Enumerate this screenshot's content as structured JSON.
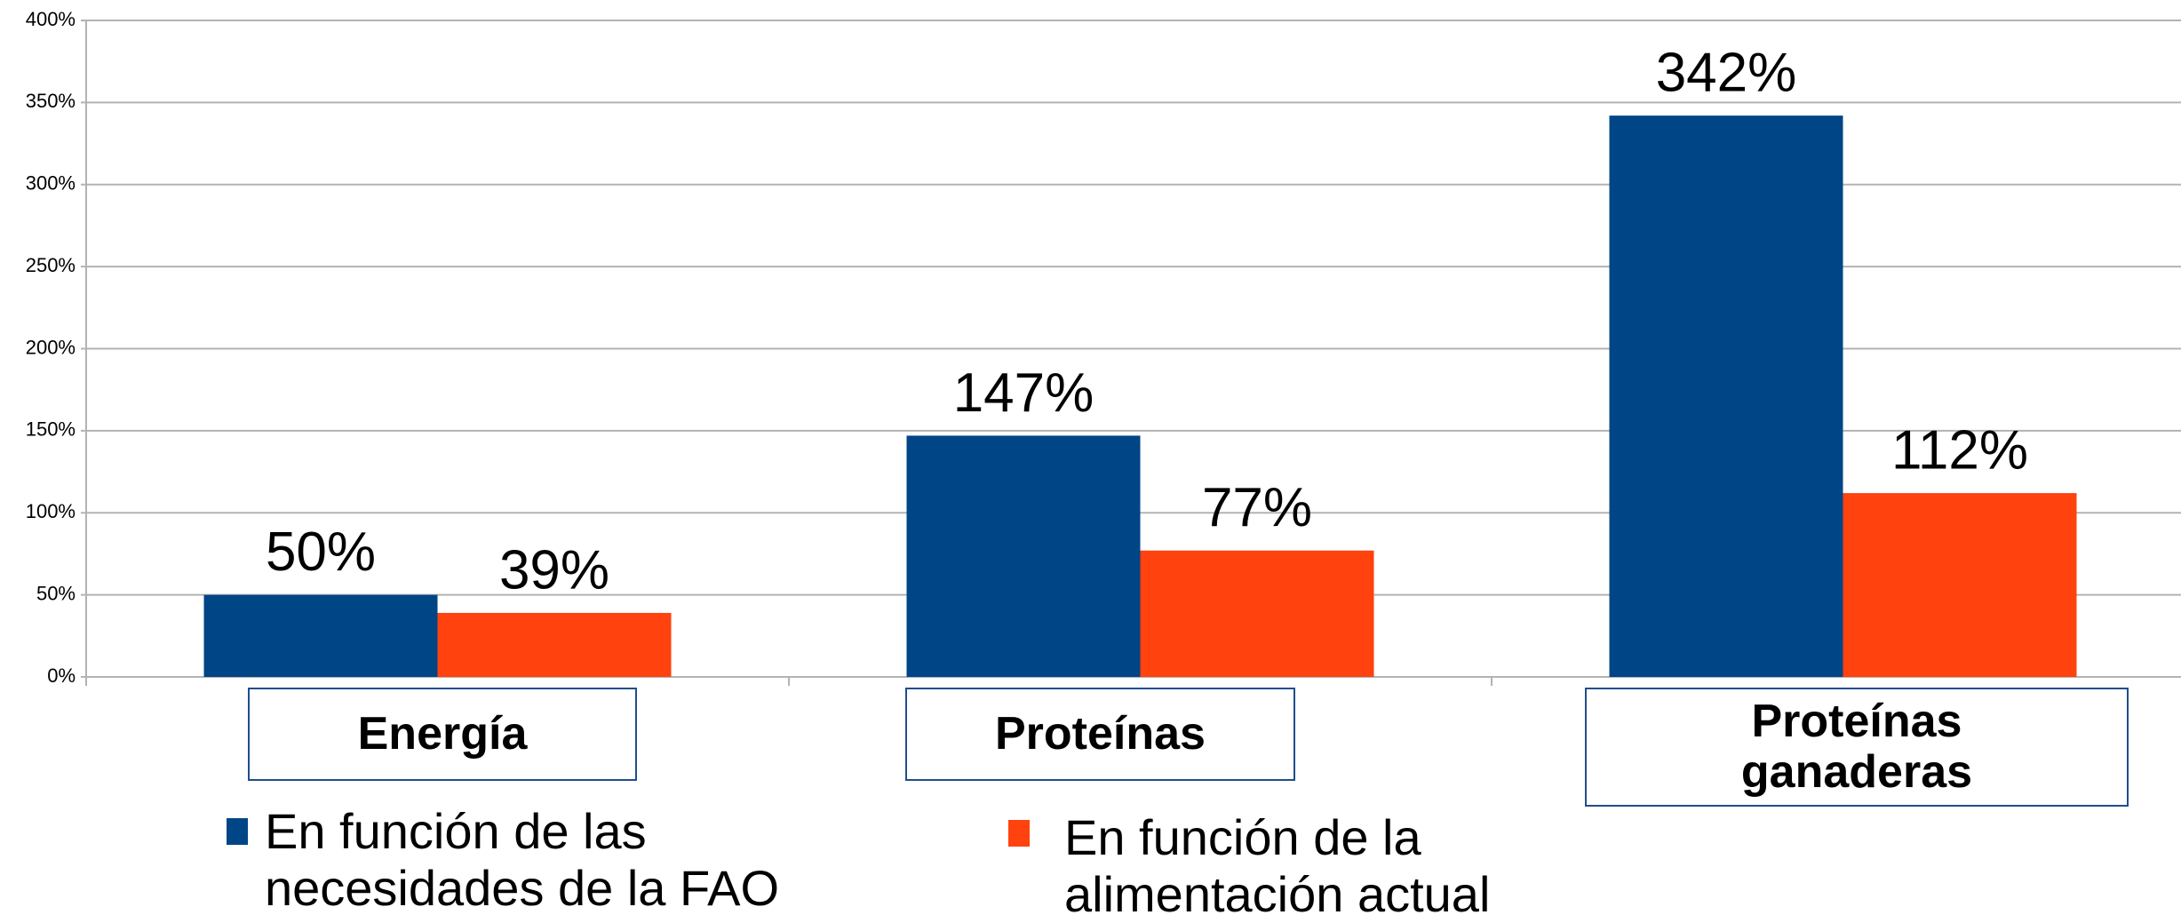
{
  "chart_data": {
    "type": "bar",
    "categories": [
      "Energía",
      "Proteínas",
      "Proteínas ganaderas"
    ],
    "series": [
      {
        "name": "En función de las necesidades de la FAO",
        "color": "#004586",
        "values": [
          50,
          147,
          342
        ],
        "value_labels": [
          "50%",
          "147%",
          "342%"
        ]
      },
      {
        "name": "En función de la alimentación actual",
        "color": "#ff420e",
        "values": [
          39,
          77,
          112
        ],
        "value_labels": [
          "39%",
          "77%",
          "112%"
        ]
      }
    ],
    "ylim": [
      0,
      400
    ],
    "yticks": [
      {
        "value": 0,
        "label": "0%"
      },
      {
        "value": 50,
        "label": "50%"
      },
      {
        "value": 100,
        "label": "100%"
      },
      {
        "value": 150,
        "label": "150%"
      },
      {
        "value": 200,
        "label": "200%"
      },
      {
        "value": 250,
        "label": "250%"
      },
      {
        "value": 300,
        "label": "300%"
      },
      {
        "value": 350,
        "label": "350%"
      },
      {
        "value": 400,
        "label": "400%"
      }
    ],
    "grid": true
  }
}
